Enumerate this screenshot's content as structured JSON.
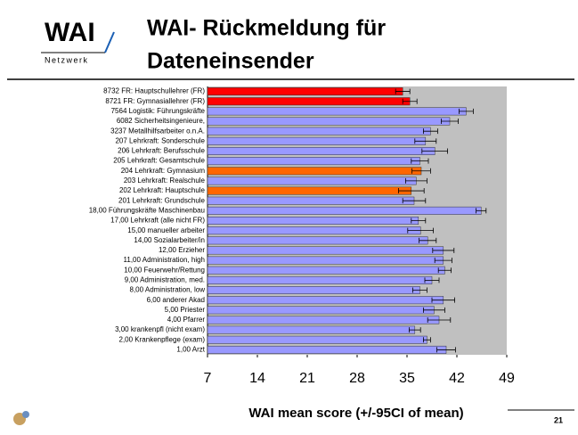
{
  "header": {
    "logo": "WAI",
    "logo_sub": "Netzwerk",
    "title_lines": [
      "WAI- Rückmeldung für",
      "Dateneinsender"
    ]
  },
  "page_number": "21",
  "chart_data": {
    "type": "barh",
    "xlabel": "WAI mean score (+/-95CI of mean)",
    "categories": [
      "8732  FR: Hauptschullehrer (FR)",
      "8721  FR: Gymnasiallehrer (FR)",
      "7564  Logistik: Führungskräfte",
      "6082  Sicherheitsingenieure,",
      "3237  Metallhilfsarbeiter o.n.A.",
      "207  Lehrkraft: Sonderschule",
      "206  Lehrkraft: Berufsschule",
      "205  Lehrkraft: Gesamtschule",
      "204  Lehrkraft: Gymnasium",
      "203  Lehrkraft: Realschule",
      "202  Lehrkraft: Hauptschule",
      "201  Lehrkraft: Grundschule",
      "18,00  Führungskräfte Maschinenbau",
      "17,00  Lehrkraft (alle nicht FR)",
      "15,00  manueller arbeiter",
      "14,00  Sozialarbeiter/in",
      "12,00  Erzieher",
      "11,00  Administration, high",
      "10,00  Feuerwehr/Rettung",
      "9,00  Administration, med.",
      "8,00  Administration, low",
      "6,00  anderer Akad",
      "5,00  Priester",
      "4,00  Pfarrer",
      "3,00  krankenpfl (nicht exam)",
      "2,00  Krankenpflege (exam)",
      "1,00  Arzt"
    ],
    "series": [
      {
        "values": [
          34.4,
          35.4,
          43.3,
          41.0,
          38.3,
          37.6,
          38.9,
          36.8,
          37.0,
          36.3,
          35.6,
          36.0,
          45.4,
          36.6,
          36.9,
          37.9,
          40.1,
          40.1,
          40.3,
          38.5,
          36.8,
          40.1,
          38.8,
          39.5,
          36.1,
          37.8,
          40.5
        ],
        "errors": [
          1.0,
          1.0,
          1.0,
          1.2,
          1.0,
          1.5,
          1.8,
          1.2,
          1.3,
          1.5,
          1.8,
          1.6,
          0.7,
          1.0,
          1.8,
          1.2,
          1.5,
          1.2,
          0.9,
          1.0,
          1.0,
          1.6,
          1.5,
          1.6,
          0.8,
          0.5,
          1.3
        ],
        "colors": [
          "#ff0000",
          "#ff0000",
          "#9999ff",
          "#9999ff",
          "#9999ff",
          "#9999ff",
          "#9999ff",
          "#9999ff",
          "#ff6600",
          "#9999ff",
          "#ff6600",
          "#9999ff",
          "#9999ff",
          "#9999ff",
          "#9999ff",
          "#9999ff",
          "#9999ff",
          "#9999ff",
          "#9999ff",
          "#9999ff",
          "#9999ff",
          "#9999ff",
          "#9999ff",
          "#9999ff",
          "#9999ff",
          "#9999ff",
          "#9999ff"
        ]
      }
    ],
    "xlim": [
      7,
      49
    ],
    "xticks": [
      7,
      14,
      21,
      28,
      35,
      42,
      49
    ]
  }
}
